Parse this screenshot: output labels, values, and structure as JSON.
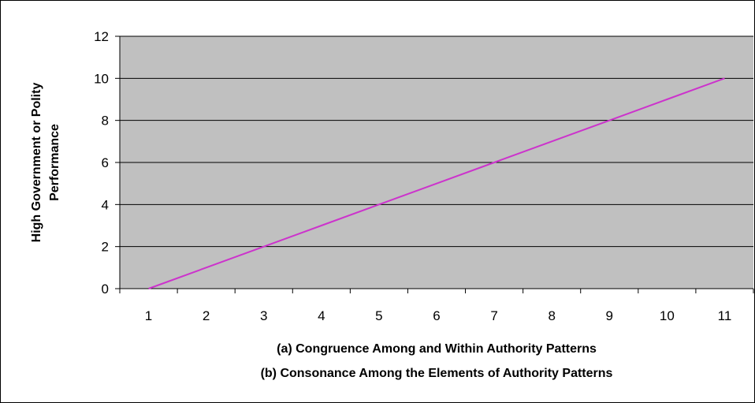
{
  "chart_data": {
    "type": "line",
    "title": "",
    "xlabel": [
      "(a) Congruence Among and Within Authority Patterns",
      "(b) Consonance Among the Elements of Authority Patterns"
    ],
    "ylabel": [
      "High Government or Polity",
      "Performance"
    ],
    "categories": [
      "1",
      "2",
      "3",
      "4",
      "5",
      "6",
      "7",
      "8",
      "9",
      "10",
      "11"
    ],
    "series": [
      {
        "values": [
          0,
          1,
          2,
          3,
          4,
          5,
          6,
          7,
          8,
          9,
          10
        ]
      }
    ],
    "ylim": [
      0,
      12
    ],
    "yticks": [
      "0",
      "2",
      "4",
      "6",
      "8",
      "10",
      "12"
    ],
    "grid": true,
    "legend": "none",
    "colors": {
      "plot_background": "#c0c0c0",
      "line": "#cc33cc",
      "gridline": "#000000"
    }
  }
}
